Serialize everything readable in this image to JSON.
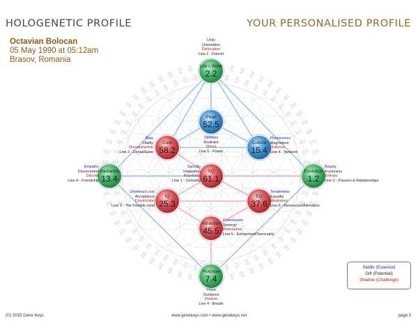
{
  "header": {
    "left_title": "HOLOGENETIC PROFILE",
    "right_title": "YOUR PERSONALISED PROFILE"
  },
  "person": {
    "name": "Octavian Bolocan",
    "date": "05 May 1990 at 05:12am",
    "place": "Brasov, Romania"
  },
  "spheres": {
    "lifes_work": {
      "name": "Life's Work",
      "value": "2.2",
      "color": "green",
      "siddhi": "Unity",
      "gift": "Orientation",
      "shadow": "Dislocation",
      "line": "Line 2 - Dancer"
    },
    "pearl": {
      "name": "Pearl",
      "value": "52.5",
      "color": "blue",
      "siddhi": "Stillness",
      "gift": "Restraint",
      "shadow": "Stress",
      "line": "Line 5 - Power"
    },
    "core": {
      "name": "Core",
      "value": "58.2",
      "color": "red",
      "siddhi": "Bliss",
      "gift": "Vitality",
      "shadow": "Dissatisfaction",
      "line": "Line 2 - Denial/Ease"
    },
    "culture": {
      "name": "Culture",
      "value": "15.4",
      "color": "blue",
      "siddhi": "Florescence",
      "gift": "Magnetism",
      "shadow": "Dullness",
      "line": "Line 4 - Network"
    },
    "radiance": {
      "name": "Radiance",
      "value": "13.4",
      "color": "green",
      "siddhi": "Empathy",
      "gift": "Discernment",
      "shadow": "Discord",
      "line": "Line 4 - Friendship"
    },
    "sq": {
      "name": "SQ",
      "value": "61.1",
      "color": "red",
      "siddhi": "Sanctity",
      "gift": "Inspiration",
      "shadow": "Psychosis",
      "line": "Line 1 - Certainty"
    },
    "evolution": {
      "name": "Evolution",
      "value": "1.2",
      "color": "green",
      "siddhi": "Beauty",
      "gift": "Freshness",
      "shadow": "Entropy",
      "line": "Line 2 - Passion & Relationships"
    },
    "iq": {
      "name": "IQ",
      "value": "25.3",
      "color": "red",
      "siddhi": "Universal Love",
      "gift": "Acceptance",
      "shadow": "Constriction",
      "line": "Line 3 - The Flexible mind"
    },
    "eq": {
      "name": "EQ",
      "value": "37.6",
      "color": "red",
      "siddhi": "Tenderness",
      "gift": "Equality",
      "shadow": "Weakness",
      "line": "Line 6 - Reverence/Alienation"
    },
    "attraction": {
      "name": "Attraction",
      "value": "45.5",
      "color": "red",
      "siddhi": "Communion",
      "gift": "Synergy",
      "shadow": "Dominance",
      "line": "Line 5 - Entrapment/Sensuality"
    },
    "purpose": {
      "name": "Purpose",
      "value": "7.4",
      "color": "green",
      "siddhi": "Virtue",
      "gift": "Guidance",
      "shadow": "Division",
      "line": "Line 4 - Breath"
    }
  },
  "legend": {
    "siddhi": "Siddhi (Essence)",
    "gift": "Gift (Potential)",
    "shadow": "Shadow (Challenge)"
  },
  "footer": {
    "copyright": "(©) 2015 Gene Keys",
    "website": "www.genekeys.com • www.genekeys.net",
    "page": "page 3"
  },
  "colors": {
    "green": "#2e9a54",
    "blue": "#2f7fc0",
    "red": "#c8323c",
    "siddhi_text": "#1a1aa0",
    "shadow_text": "#b01818",
    "header_accent": "#8a6a2a"
  }
}
